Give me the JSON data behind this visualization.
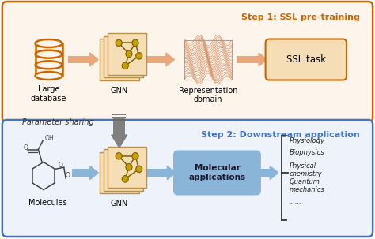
{
  "fig_width": 4.74,
  "fig_height": 3.03,
  "dpi": 100,
  "bg_color": "#ffffff",
  "top_box_color": "#cc6600",
  "bottom_box_color": "#4472c4",
  "top_box_fill": "#fdf4ec",
  "bottom_box_fill": "#eef3fb",
  "step1_title": "Step 1: SSL pre-training",
  "step2_title": "Step 2: Downstream application",
  "step1_color": "#cc6600",
  "step2_color": "#4472c4",
  "arrow_color_top": "#e8a87c",
  "arrow_color_bottom": "#8ab4d8",
  "arrow_color_center": "#808080",
  "node_color": "#c8a000",
  "node_edge_color": "#7a6000",
  "panel_face_color": "#f5ddb5",
  "panel_edge_color": "#b8904a",
  "ssl_task_fill": "#f5ddb5",
  "mol_app_fill": "#8ab4d8",
  "mol_app_text": "#1a1a2e",
  "param_sharing_text": "Parameter sharing",
  "label_large_db": "Large\ndatabase",
  "label_gnn1": "GNN",
  "label_repr": "Representation\ndomain",
  "label_ssl": "SSL task",
  "label_molecules": "Molecules",
  "label_gnn2": "GNN",
  "label_mol_app": "Molecular\napplications",
  "applications": [
    "Physiology",
    "Biophysics",
    "Physical\nchemistry",
    "Quantum\nmechanics",
    "......"
  ],
  "db_color": "#cc6600"
}
